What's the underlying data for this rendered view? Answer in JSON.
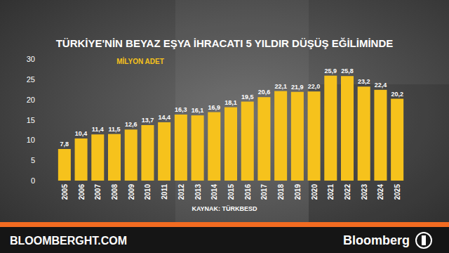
{
  "chart_data": {
    "type": "bar",
    "title": "TÜRKİYE'NİN BEYAZ EŞYA İHRACATI 5 YILDIR DÜŞÜŞ EĞİLİMİNDE",
    "subtitle": "MİLYON ADET",
    "categories": [
      "2005",
      "2006",
      "2007",
      "2008",
      "2009",
      "2010",
      "2011",
      "2012",
      "2013",
      "2014",
      "2015",
      "2016",
      "2017",
      "2018",
      "2019",
      "2020",
      "2021",
      "2022",
      "2023",
      "2024",
      "2025"
    ],
    "values": [
      7.8,
      10.4,
      11.4,
      11.5,
      12.6,
      13.7,
      14.4,
      16.3,
      16.1,
      16.9,
      18.1,
      19.5,
      20.6,
      22.1,
      21.9,
      22.0,
      25.9,
      25.8,
      23.2,
      22.4,
      20.2
    ],
    "value_labels": [
      "7,8",
      "10,4",
      "11,4",
      "11,5",
      "12,6",
      "13,7",
      "14,4",
      "16,3",
      "16,1",
      "16,9",
      "18,1",
      "19,5",
      "20,6",
      "22,1",
      "21,9",
      "22,0",
      "25,9",
      "25,8",
      "23,2",
      "22,4",
      "20,2"
    ],
    "color": "#f6c21c",
    "ylim": [
      0,
      30
    ],
    "yticks": [
      0,
      5,
      10,
      15,
      20,
      25,
      30
    ],
    "grid": false,
    "data_labels": true,
    "annotations": [
      "KAYNAK: TÜRKBESD",
      "BLOOMBERGHT.COM",
      "Bloomberg"
    ]
  }
}
